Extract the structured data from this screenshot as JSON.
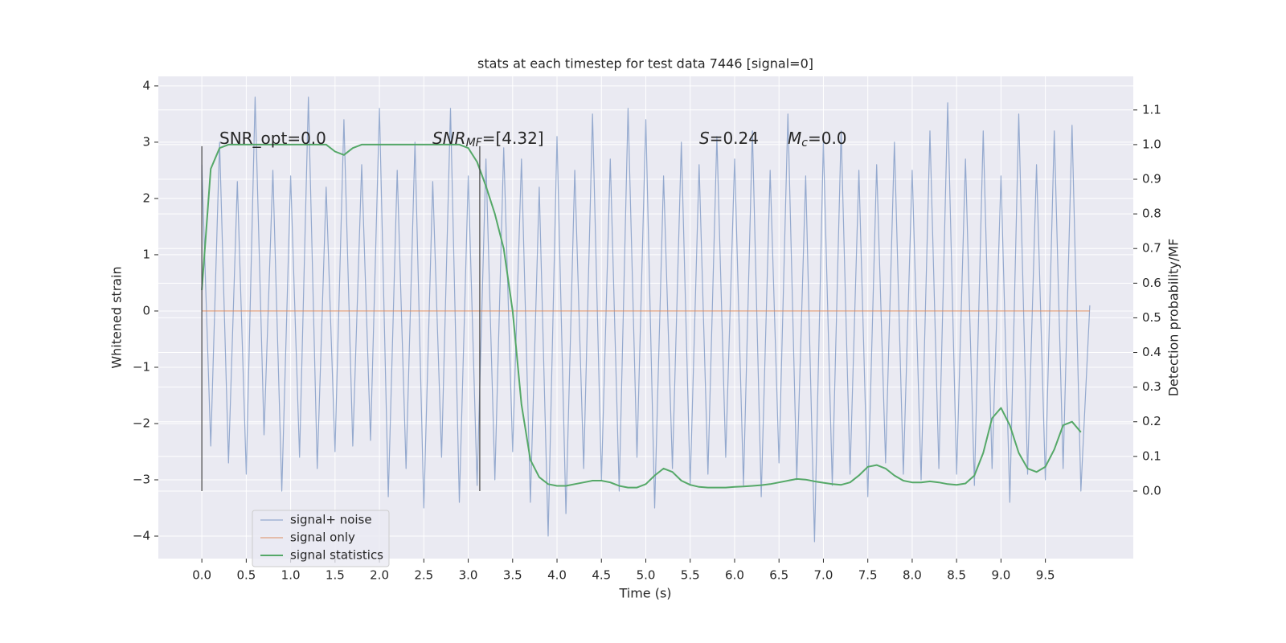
{
  "chart_data": {
    "type": "line",
    "title": "stats at each timestep for test data 7446 [signal=0]",
    "xlabel": "Time (s)",
    "ylabel": "Whitened strain",
    "y2label": "Detection probability/MF",
    "xlim": [
      -0.49,
      10.49
    ],
    "ylim": [
      -4.4,
      4.17
    ],
    "y2lim": [
      -0.195,
      1.197
    ],
    "xticks": [
      {
        "value": 0,
        "label": "0.0"
      },
      0.5,
      {
        "value": 1,
        "label": "1.0"
      },
      1.5,
      {
        "value": 2,
        "label": "2.0"
      },
      2.5,
      {
        "value": 3,
        "label": "3.0"
      },
      3.5,
      {
        "value": 4,
        "label": "4.0"
      },
      4.5,
      {
        "value": 5,
        "label": "5.0"
      },
      5.5,
      {
        "value": 6,
        "label": "6.0"
      },
      6.5,
      {
        "value": 7,
        "label": "7.0"
      },
      7.5,
      {
        "value": 8,
        "label": "8.0"
      },
      8.5,
      {
        "value": 9,
        "label": "9.0"
      },
      9.5
    ],
    "yticks": [
      {
        "value": -4,
        "label": "−4"
      },
      {
        "value": -3,
        "label": "−3"
      },
      {
        "value": -2,
        "label": "−2"
      },
      {
        "value": -1,
        "label": "−1"
      },
      0,
      1,
      2,
      3,
      4
    ],
    "y2ticks": [
      {
        "value": 0,
        "label": "0.0"
      },
      0.1,
      0.2,
      0.3,
      0.4,
      0.5,
      0.6,
      0.7,
      0.8,
      0.9,
      {
        "value": 1,
        "label": "1.0"
      },
      1.1
    ],
    "grid": true,
    "legend": "lower left",
    "x": [
      0,
      0.1,
      0.2,
      0.3,
      0.4,
      0.5,
      0.6,
      0.7,
      0.8,
      0.9,
      1,
      1.1,
      1.2,
      1.3,
      1.4,
      1.5,
      1.6,
      1.7,
      1.8,
      1.9,
      2,
      2.1,
      2.2,
      2.3,
      2.4,
      2.5,
      2.6,
      2.7,
      2.8,
      2.9,
      3,
      3.1,
      3.2,
      3.3,
      3.4,
      3.5,
      3.6,
      3.7,
      3.8,
      3.9,
      4,
      4.1,
      4.2,
      4.3,
      4.4,
      4.5,
      4.6,
      4.7,
      4.8,
      4.9,
      5,
      5.1,
      5.2,
      5.3,
      5.4,
      5.5,
      5.6,
      5.7,
      5.8,
      5.9,
      6,
      6.1,
      6.2,
      6.3,
      6.4,
      6.5,
      6.6,
      6.7,
      6.8,
      6.9,
      7,
      7.1,
      7.2,
      7.3,
      7.4,
      7.5,
      7.6,
      7.7,
      7.8,
      7.9,
      8,
      8.1,
      8.2,
      8.3,
      8.4,
      8.5,
      8.6,
      8.7,
      8.8,
      8.9,
      9,
      9.1,
      9.2,
      9.3,
      9.4,
      9.5,
      9.6,
      9.7,
      9.8,
      9.9,
      10
    ],
    "series": [
      {
        "name": "signal+ noise",
        "color": "#4c72b0",
        "values": [
          2.6,
          -2.4,
          3.0,
          -2.7,
          2.3,
          -2.9,
          3.8,
          -2.2,
          2.5,
          -3.2,
          2.4,
          -2.6,
          3.8,
          -2.8,
          2.2,
          -2.5,
          3.4,
          -2.4,
          2.6,
          -2.3,
          3.6,
          -3.3,
          2.5,
          -2.8,
          3.0,
          -3.5,
          2.3,
          -2.6,
          3.6,
          -3.4,
          2.4,
          -3.1,
          2.7,
          -3.0,
          2.9,
          -2.5,
          2.7,
          -3.4,
          2.2,
          -4.0,
          3.1,
          -3.6,
          2.5,
          -2.8,
          3.5,
          -3.0,
          2.7,
          -3.2,
          3.6,
          -2.6,
          3.4,
          -3.5,
          2.4,
          -2.8,
          3.0,
          -3.1,
          2.6,
          -2.9,
          3.1,
          -2.6,
          2.7,
          -3.1,
          3.2,
          -3.3,
          2.5,
          -2.7,
          3.5,
          -3.0,
          2.4,
          -4.1,
          3.0,
          -3.1,
          3.2,
          -2.9,
          2.5,
          -3.3,
          2.6,
          -2.7,
          3.0,
          -2.9,
          2.5,
          -3.0,
          3.2,
          -2.8,
          3.7,
          -2.9,
          2.7,
          -3.1,
          3.2,
          -2.8,
          2.4,
          -3.4,
          3.5,
          -2.9,
          2.6,
          -3.0,
          3.2,
          -2.8,
          3.3,
          -3.2,
          0.1
        ]
      },
      {
        "name": "signal only",
        "color": "#dd8452",
        "values": [
          0,
          0,
          0,
          0,
          0,
          0,
          0,
          0,
          0,
          0,
          0,
          0,
          0,
          0,
          0,
          0,
          0,
          0,
          0,
          0,
          0,
          0,
          0,
          0,
          0,
          0,
          0,
          0,
          0,
          0,
          0,
          0,
          0,
          0,
          0,
          0,
          0,
          0,
          0,
          0,
          0,
          0,
          0,
          0,
          0,
          0,
          0,
          0,
          0,
          0,
          0,
          0,
          0,
          0,
          0,
          0,
          0,
          0,
          0,
          0,
          0,
          0,
          0,
          0,
          0,
          0,
          0,
          0,
          0,
          0,
          0,
          0,
          0,
          0,
          0,
          0,
          0,
          0,
          0,
          0,
          0,
          0,
          0,
          0,
          0,
          0,
          0,
          0,
          0,
          0,
          0,
          0,
          0,
          0,
          0,
          0,
          0,
          0,
          0,
          0,
          0
        ]
      },
      {
        "name": "signal statistics",
        "color": "#55a868",
        "axis": "y2",
        "values": [
          0.58,
          0.93,
          0.99,
          1,
          1,
          1,
          1,
          1,
          1,
          1,
          1,
          1,
          1,
          1,
          1,
          0.98,
          0.97,
          0.99,
          1,
          1,
          1,
          1,
          1,
          1,
          1,
          1,
          1,
          1,
          1,
          1,
          0.99,
          0.95,
          0.88,
          0.8,
          0.7,
          0.52,
          0.25,
          0.09,
          0.04,
          0.02,
          0.015,
          0.015,
          0.02,
          0.025,
          0.03,
          0.03,
          0.025,
          0.015,
          0.01,
          0.01,
          0.02,
          0.045,
          0.065,
          0.055,
          0.03,
          0.018,
          0.012,
          0.01,
          0.01,
          0.01,
          0.012,
          0.013,
          0.015,
          0.017,
          0.02,
          0.025,
          0.03,
          0.035,
          0.033,
          0.028,
          0.024,
          0.02,
          0.018,
          0.025,
          0.045,
          0.07,
          0.075,
          0.065,
          0.045,
          0.03,
          0.025,
          0.025,
          0.028,
          0.025,
          0.02,
          0.018,
          0.022,
          0.045,
          0.11,
          0.21,
          0.24,
          0.19,
          0.11,
          0.065,
          0.055,
          0.07,
          0.12,
          0.19,
          0.2,
          0.17,
          null
        ]
      }
    ],
    "vlines": {
      "x": [
        0,
        3.13
      ],
      "ymin": -3.2,
      "ymax": 2.93
    },
    "annotations": [
      {
        "tail": "SNR_opt=0.0"
      },
      {
        "main": "SNR",
        "sub": "MF",
        "tail": "=[4.32]"
      },
      {
        "main": "S",
        "tail": "=0.24"
      },
      {
        "main": "M",
        "sub": "c",
        "tail": "=0.0"
      }
    ]
  }
}
